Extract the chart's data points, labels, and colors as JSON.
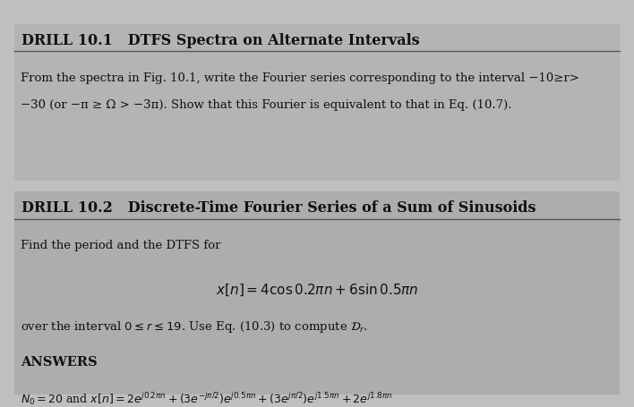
{
  "bg_outer": "#c0bfbf",
  "bg_box1": "#b5b4b4",
  "bg_box2": "#aeadad",
  "box1_title": "DRILL 10.1   DTFS Spectra on Alternate Intervals",
  "box1_body_line1": "From the spectra in Fig. 10.1, write the Fourier series corresponding to the interval −10≥r>",
  "box1_body_line2": "−30 (or −π ≥ Ω > −3π). Show that this Fourier is equivalent to that in Eq. (10.7).",
  "box2_title": "DRILL 10.2   Discrete-Time Fourier Series of a Sum of Sinusoids",
  "box2_line1": "Find the period and the DTFS for",
  "box2_line2": "over the interval 0 ≤ r ≤ 19. Use Eq. (10.3) to compute 𝓟ᵣ.",
  "box2_answers_header": "ANSWERS"
}
